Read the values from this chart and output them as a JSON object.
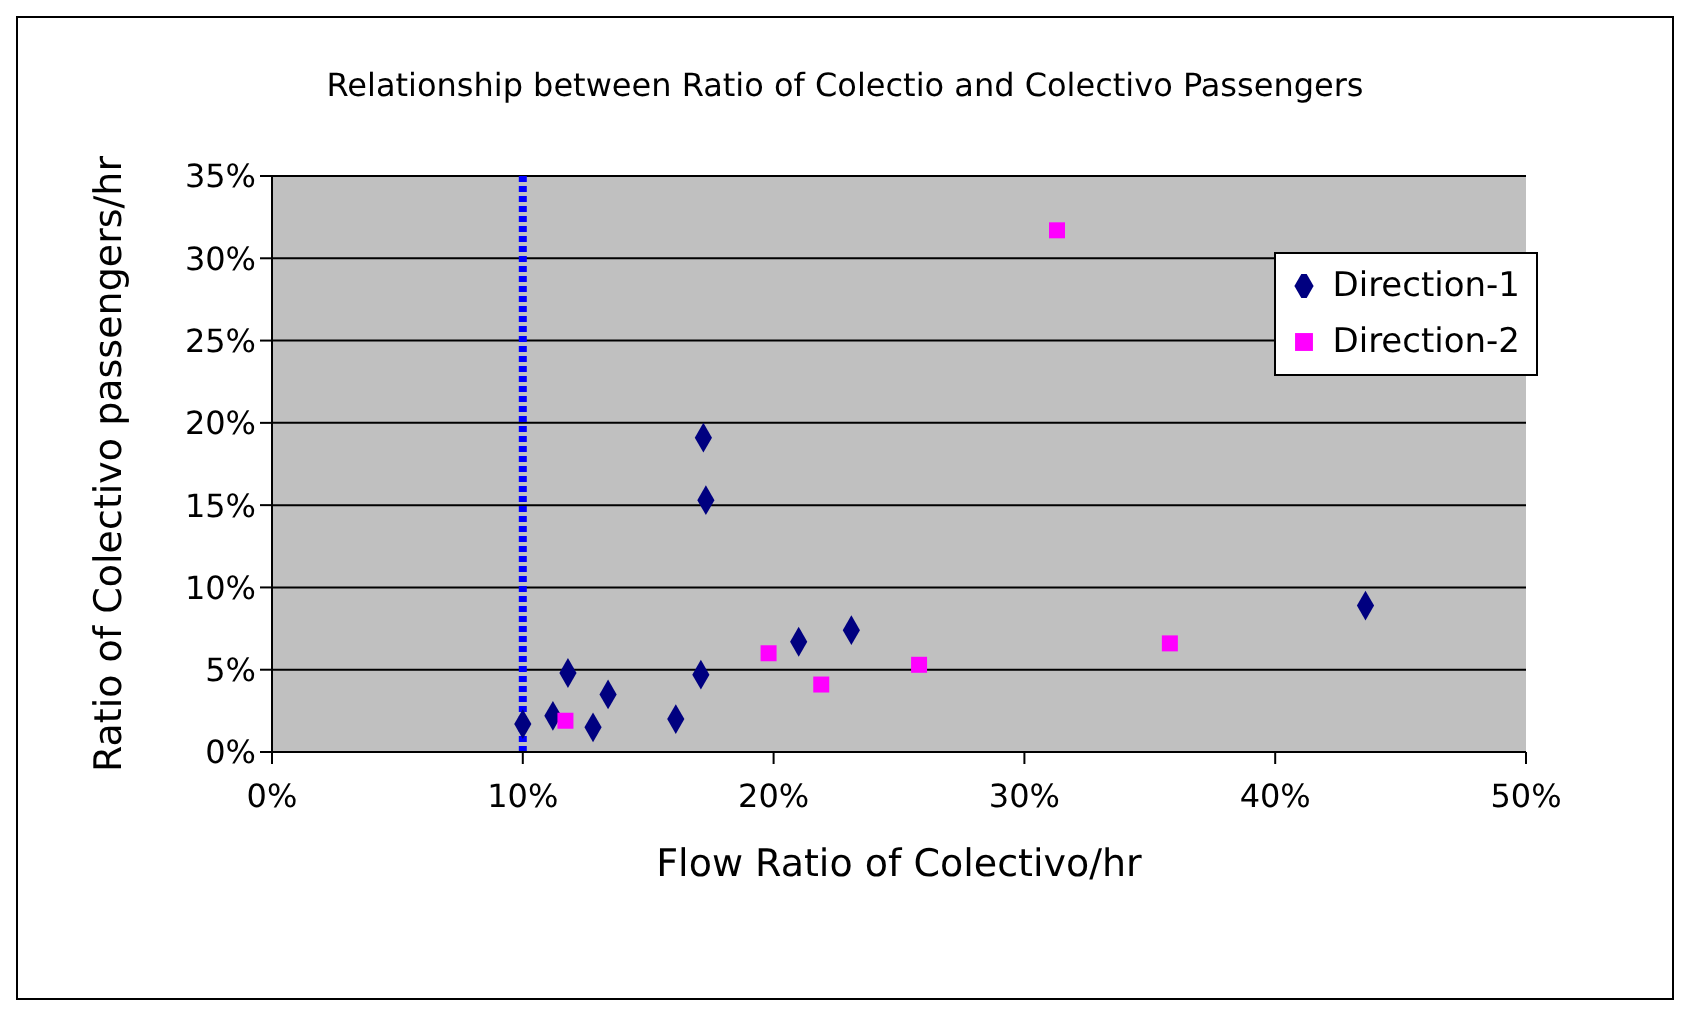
{
  "chart_data": {
    "type": "scatter",
    "title": "Relationship between Ratio of Colectio and Colectivo Passengers",
    "xlabel": "Flow Ratio of Colectivo/hr",
    "ylabel": "Ratio of Colectivo passengers/hr",
    "xlim": [
      0,
      50
    ],
    "xticks": [
      {
        "value": 0,
        "label": "0%"
      },
      {
        "value": 10,
        "label": "10%"
      },
      {
        "value": 20,
        "label": "20%"
      },
      {
        "value": 30,
        "label": "30%"
      },
      {
        "value": 40,
        "label": "40%"
      },
      {
        "value": 50,
        "label": "50%"
      }
    ],
    "ylim": [
      0,
      35
    ],
    "yticks": [
      {
        "value": 0,
        "label": "0%"
      },
      {
        "value": 5,
        "label": "5%"
      },
      {
        "value": 10,
        "label": "10%"
      },
      {
        "value": 15,
        "label": "15%"
      },
      {
        "value": 20,
        "label": "20%"
      },
      {
        "value": 25,
        "label": "25%"
      },
      {
        "value": 30,
        "label": "30%"
      },
      {
        "value": 35,
        "label": "35%"
      }
    ],
    "grid": "y",
    "legend": "right",
    "series": [
      {
        "name": "Direction-1",
        "color": "#000080",
        "marker": "diamond",
        "x": [
          10.0,
          11.2,
          11.8,
          13.4,
          12.8,
          16.1,
          17.1,
          21.0,
          23.1,
          17.2,
          17.3,
          43.6
        ],
        "values": [
          1.7,
          2.2,
          4.8,
          3.5,
          1.5,
          2.0,
          4.7,
          6.7,
          7.4,
          19.1,
          15.3,
          8.9
        ]
      },
      {
        "name": "Direction-2",
        "color": "#ff00ff",
        "marker": "square",
        "x": [
          11.7,
          19.8,
          21.9,
          25.8,
          35.8,
          31.3
        ],
        "values": [
          1.9,
          6.0,
          4.1,
          5.3,
          6.6,
          31.7
        ]
      }
    ],
    "ref_lines": [
      {
        "axis": "x",
        "value": 10,
        "color": "#0000ff",
        "line_style": "dotted"
      }
    ]
  }
}
